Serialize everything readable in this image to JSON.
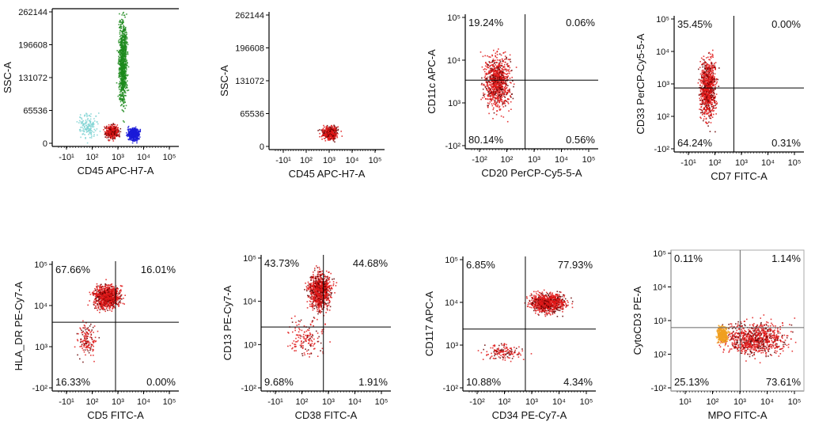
{
  "chart_data": [
    {
      "type": "scatter",
      "xlabel": "CD45 APC-H7-A",
      "ylabel": "SSC-A",
      "yscale": "linear",
      "xticks": [
        "-10¹",
        "10²",
        "10³",
        "10⁴",
        "10⁵"
      ],
      "yticks": [
        "0",
        "65536",
        "131072",
        "196608",
        "262144"
      ],
      "quadrants": null,
      "populations": [
        {
          "color": "#1c8a1c",
          "x": [
            1800,
            4200
          ],
          "y": [
            60000,
            262144
          ],
          "density": "high"
        },
        {
          "color": "#7fd4d4",
          "x": [
            60,
            500
          ],
          "y": [
            10000,
            70000
          ],
          "density": "low"
        },
        {
          "color": "#e01818",
          "x": [
            600,
            2200
          ],
          "y": [
            12000,
            45000
          ],
          "density": "medium"
        },
        {
          "color": "#1a1ad8",
          "x": [
            3500,
            12000
          ],
          "y": [
            8000,
            40000
          ],
          "density": "medium"
        }
      ]
    },
    {
      "type": "scatter",
      "xlabel": "CD45 APC-H7-A",
      "ylabel": "SSC-A",
      "yscale": "linear",
      "xticks": [
        "-10¹",
        "10²",
        "10³",
        "10⁴",
        "10⁵"
      ],
      "yticks": [
        "0",
        "65536",
        "131072",
        "196608",
        "262144"
      ],
      "quadrants": null,
      "populations": [
        {
          "color": "#e01818",
          "x": [
            800,
            5000
          ],
          "y": [
            15000,
            50000
          ],
          "density": "medium"
        }
      ]
    },
    {
      "type": "scatter",
      "xlabel": "CD20 PerCP-Cy5-5-A",
      "ylabel": "CD11c APC-A",
      "xticks": [
        "-10²",
        "10²",
        "10³",
        "10⁴",
        "10⁵"
      ],
      "yticks": [
        "-10²",
        "10³",
        "10⁴",
        "10⁵"
      ],
      "quadrants": {
        "ul": "19.24%",
        "ur": "0.06%",
        "ll": "80.14%",
        "lr": "0.56%"
      },
      "populations": [
        {
          "color": "#e01818",
          "x": [
            30,
            400
          ],
          "y": [
            100,
            20000
          ],
          "density": "high"
        }
      ]
    },
    {
      "type": "scatter",
      "xlabel": "CD7 FITC-A",
      "ylabel": "CD33 PerCP-Cy5-5-A",
      "xticks": [
        "-10¹",
        "10²",
        "10³",
        "10⁴",
        "10⁵"
      ],
      "yticks": [
        "-10²",
        "10²",
        "10³",
        "10⁴",
        "10⁵"
      ],
      "quadrants": {
        "ul": "35.45%",
        "ur": "0.00%",
        "ll": "64.24%",
        "lr": "0.31%"
      },
      "populations": [
        {
          "color": "#e01818",
          "x": [
            60,
            300
          ],
          "y": [
            60,
            20000
          ],
          "density": "high"
        }
      ]
    },
    {
      "type": "scatter",
      "xlabel": "CD5 FITC-A",
      "ylabel": "HLA_DR PE-Cy7-A",
      "xticks": [
        "-10¹",
        "10²",
        "10³",
        "10⁴",
        "10⁵"
      ],
      "yticks": [
        "-10²",
        "10³",
        "10⁴",
        "10⁵"
      ],
      "quadrants": {
        "ul": "67.66%",
        "ur": "16.01%",
        "ll": "16.33%",
        "lr": "0.00%"
      },
      "populations": [
        {
          "color": "#e01818",
          "x": [
            200,
            3000
          ],
          "y": [
            5000,
            50000
          ],
          "density": "high"
        },
        {
          "color": "#e01818",
          "x": [
            60,
            400
          ],
          "y": [
            100,
            3000
          ],
          "density": "low"
        }
      ]
    },
    {
      "type": "scatter",
      "xlabel": "CD38 FITC-A",
      "ylabel": "CD13 PE-Cy7-A",
      "xticks": [
        "-10¹",
        "10²",
        "10³",
        "10⁴",
        "10⁵"
      ],
      "yticks": [
        "-10²",
        "10³",
        "10⁴",
        "10⁵"
      ],
      "quadrants": {
        "ul": "43.73%",
        "ur": "44.68%",
        "ll": "9.68%",
        "lr": "1.91%"
      },
      "populations": [
        {
          "color": "#e01818",
          "x": [
            300,
            3000
          ],
          "y": [
            3000,
            100000
          ],
          "density": "high"
        },
        {
          "color": "#e01818",
          "x": [
            60,
            2000
          ],
          "y": [
            100,
            3000
          ],
          "density": "low"
        }
      ]
    },
    {
      "type": "scatter",
      "xlabel": "CD34 PE-Cy7-A",
      "ylabel": "CD117 APC-A",
      "xticks": [
        "-10²",
        "10²",
        "10³",
        "10⁴",
        "10⁵"
      ],
      "yticks": [
        "-10²",
        "10³",
        "10⁴",
        "10⁵"
      ],
      "quadrants": {
        "ul": "6.85%",
        "ur": "77.93%",
        "ll": "10.88%",
        "lr": "4.34%"
      },
      "populations": [
        {
          "color": "#e01818",
          "x": [
            1000,
            40000
          ],
          "y": [
            3000,
            20000
          ],
          "density": "high"
        },
        {
          "color": "#e01818",
          "x": [
            30,
            1500
          ],
          "y": [
            100,
            400
          ],
          "density": "low"
        }
      ]
    },
    {
      "type": "scatter",
      "xlabel": "MPO FITC-A",
      "ylabel": "CytoCD3 PE-A",
      "xticks": [
        "10¹",
        "10²",
        "10³",
        "10⁴",
        "10⁵"
      ],
      "yticks": [
        "-10²",
        "10²",
        "10³",
        "10⁴",
        "10⁵"
      ],
      "quadrants": {
        "ul": "0.11%",
        "ur": "1.14%",
        "ll": "25.13%",
        "lr": "73.61%"
      },
      "populations": [
        {
          "color": "#e01818",
          "x": [
            300,
            150000
          ],
          "y": [
            100,
            2000
          ],
          "density": "high"
        },
        {
          "color": "#f0a020",
          "x": [
            300,
            800
          ],
          "y": [
            300,
            1200
          ],
          "density": "medium"
        }
      ]
    }
  ]
}
